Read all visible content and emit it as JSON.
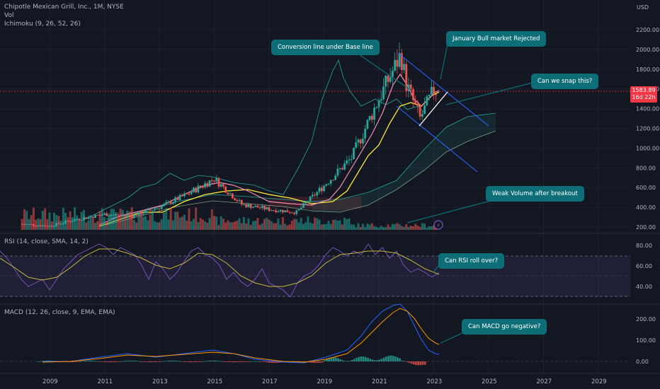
{
  "legend": {
    "symbol": "Chipotle Mexican Grill, Inc., 1M, NYSE",
    "vol": "Vol",
    "ichimoku": "Ichimoku (9, 26, 52, 26)",
    "rsi": "RSI (14, close, SMA, 14, 2)",
    "macd": "MACD (12, 26, close, 9, EMA, EMA)"
  },
  "currency": "USD",
  "price_tag": {
    "price": "1583.89",
    "countdown": "16d 22h"
  },
  "annotations": {
    "conversion": "Conversion line under Base line",
    "january": "January Bull market Rejected",
    "snap": "Can we snap this?",
    "volume": "Weak Volume after breakout",
    "rsi": "Can RSI roll over?",
    "macd": "Can MACD go negative?"
  },
  "colors": {
    "up": "#26a69a",
    "down": "#ef5350",
    "rsi": "#7e57c2",
    "callout": "#0e6e78",
    "trend": "#2962ff"
  },
  "chart_data": [
    {
      "type": "candlestick",
      "title": "Chipotle Mexican Grill, Inc., 1M, NYSE",
      "y_ticks": [
        "2200.00",
        "2000.00",
        "1800.00",
        "1600.00",
        "1400.00",
        "1200.00",
        "1000.00",
        "800.00",
        "600.00",
        "400.00",
        "200.00"
      ],
      "x_ticks": [
        "2009",
        "2011",
        "2013",
        "2015",
        "2017",
        "2019",
        "2021",
        "2023",
        "2025",
        "2027",
        "2029"
      ],
      "approx_close_by_year": {
        "x": [
          2008,
          2009,
          2010,
          2011,
          2012,
          2013,
          2014,
          2015,
          2016,
          2017,
          2018,
          2019,
          2020,
          2021,
          2021.8,
          2022,
          2022.5,
          2023
        ],
        "y": [
          230,
          210,
          280,
          330,
          310,
          400,
          530,
          690,
          430,
          380,
          350,
          620,
          900,
          1500,
          1950,
          1650,
          1300,
          1584
        ]
      },
      "last_price": 1583.89
    },
    {
      "type": "line",
      "title": "RSI (14, close, SMA, 14, 2)",
      "y_ticks": [
        "80.00",
        "60.00",
        "40.00"
      ]
    },
    {
      "type": "histogram",
      "title": "MACD (12, 26, close, 9, EMA, EMA)",
      "y_ticks": [
        "200.00",
        "100.00",
        "0.00"
      ]
    }
  ]
}
